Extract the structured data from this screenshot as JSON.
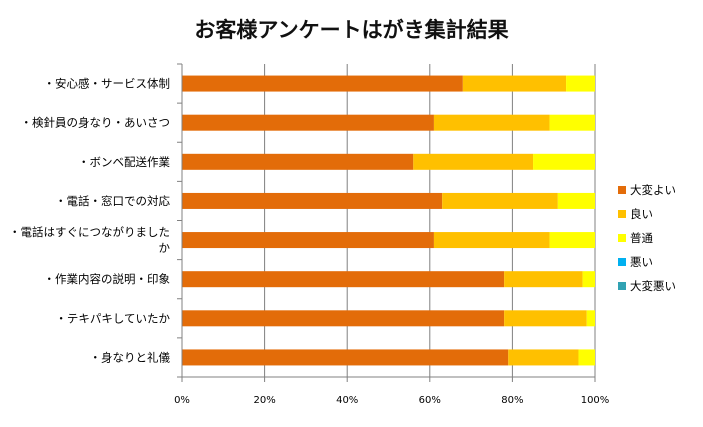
{
  "chart_data": {
    "type": "bar",
    "orientation": "horizontal",
    "stacked": "percent",
    "title": "お客様アンケートはがき集計結果",
    "categories": [
      [
        "・安心感・サービス体制"
      ],
      [
        "・検針員の身なり・あいさつ"
      ],
      [
        "・ボンベ配送作業"
      ],
      [
        "・電話・窓口での対応"
      ],
      [
        "・電話はすぐにつながりました",
        "か"
      ],
      [
        "・作業内容の説明・印象"
      ],
      [
        "・テキパキしていたか"
      ],
      [
        "・身なりと礼儀"
      ]
    ],
    "series": [
      {
        "name": "大変よい",
        "color": "#E36C09",
        "values": [
          68,
          61,
          56,
          63,
          61,
          78,
          78,
          79
        ]
      },
      {
        "name": "良い",
        "color": "#FFC000",
        "values": [
          25,
          28,
          29,
          28,
          28,
          19,
          20,
          17
        ]
      },
      {
        "name": "普通",
        "color": "#FFFF00",
        "values": [
          7,
          11,
          15,
          9,
          11,
          3,
          2,
          4
        ]
      },
      {
        "name": "悪い",
        "color": "#00B0F0",
        "values": [
          0,
          0,
          0,
          0,
          0,
          0,
          0,
          0
        ]
      },
      {
        "name": "大変悪い",
        "color": "#31A2B3",
        "values": [
          0,
          0,
          0,
          0,
          0,
          0,
          0,
          0
        ]
      }
    ],
    "x_ticks": [
      "0%",
      "20%",
      "40%",
      "60%",
      "80%",
      "100%"
    ],
    "xlim": [
      0,
      100
    ],
    "grid": true,
    "legend_position": "right"
  }
}
